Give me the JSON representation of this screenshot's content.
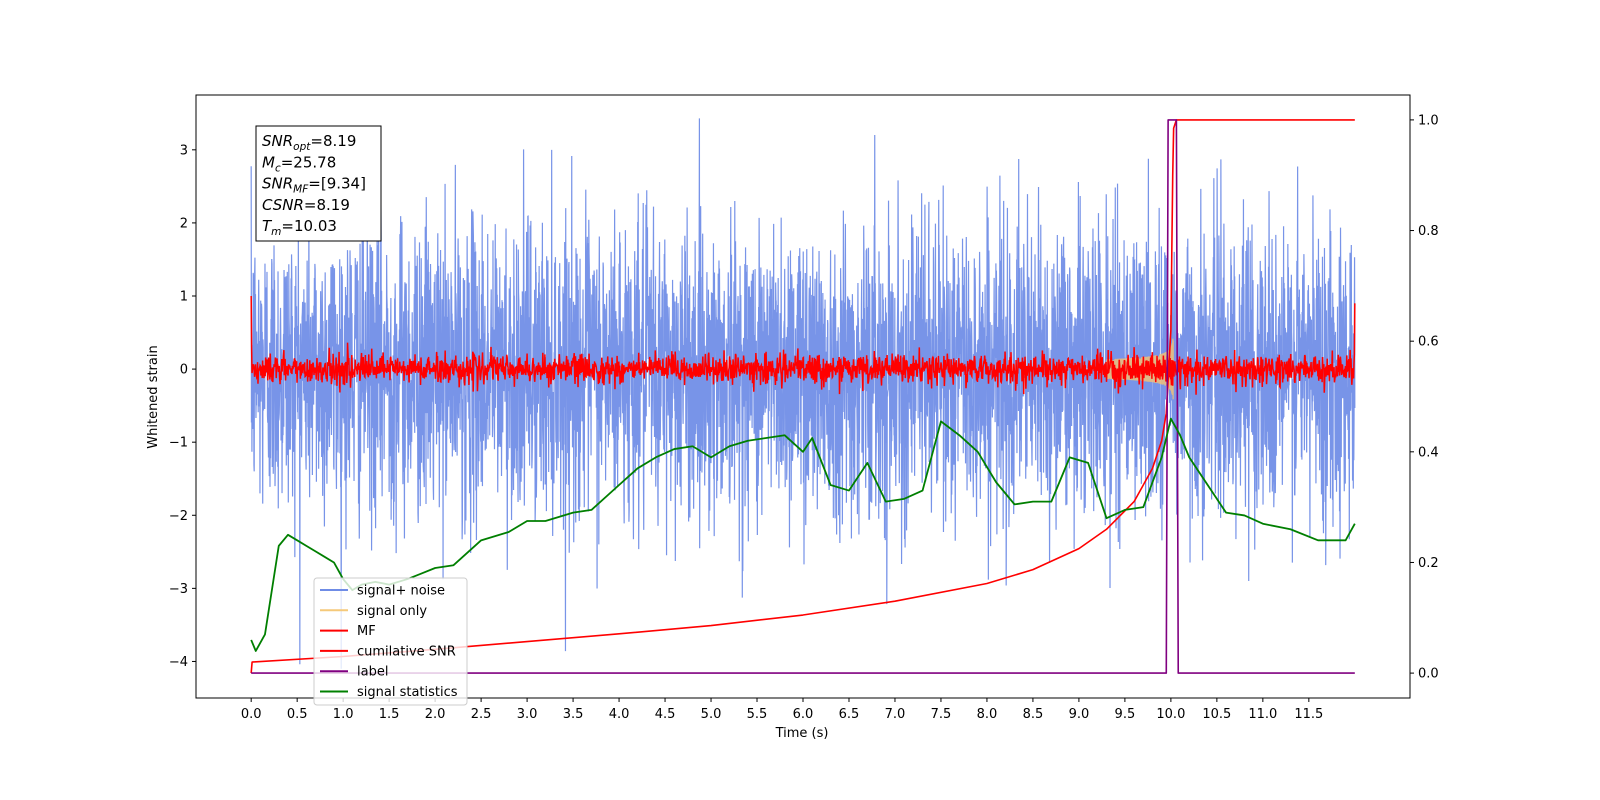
{
  "chart_data": {
    "type": "line",
    "xlabel": "Time (s)",
    "ylabel": "Whitened strain",
    "xlim": [
      -0.6,
      12.6
    ],
    "ylim": [
      -4.5,
      3.75
    ],
    "y2lim": [
      -0.045,
      1.045
    ],
    "xticks": [
      "0.0",
      "0.5",
      "1.0",
      "1.5",
      "2.0",
      "2.5",
      "3.0",
      "3.5",
      "4.0",
      "4.5",
      "5.0",
      "5.5",
      "6.0",
      "6.5",
      "7.0",
      "7.5",
      "8.0",
      "8.5",
      "9.0",
      "9.5",
      "10.0",
      "10.5",
      "11.0",
      "11.5"
    ],
    "yticks": [
      "3",
      "2",
      "1",
      "0",
      "−1",
      "−2",
      "−3",
      "−4"
    ],
    "y2ticks": [
      "0.0",
      "0.2",
      "0.4",
      "0.6",
      "0.8",
      "1.0"
    ],
    "annotation": [
      {
        "sym": "SNR",
        "sub": "opt",
        "rest": "=8.19"
      },
      {
        "sym": "M",
        "sub": "c",
        "rest": "=25.78"
      },
      {
        "sym": "SNR",
        "sub": "MF",
        "rest": "=[9.34]"
      },
      {
        "sym": "CSNR",
        "sub": "",
        "rest": "=8.19"
      },
      {
        "sym": "T",
        "sub": "m",
        "rest": "=10.03"
      }
    ],
    "legend": {
      "placement": "lower left",
      "entries": [
        {
          "label": "signal+ noise",
          "color": "#6f8ce6"
        },
        {
          "label": "signal only",
          "color": "#f5c97a"
        },
        {
          "label": "MF",
          "color": "#ff0000"
        },
        {
          "label": "cumilative SNR",
          "color": "#ff0000"
        },
        {
          "label": "label",
          "color": "#800080"
        },
        {
          "label": "signal statistics",
          "color": "#008000"
        }
      ]
    },
    "series": [
      {
        "name": "signal+ noise",
        "axis": "left",
        "color": "#7894e8",
        "kind": "noise",
        "t_range": [
          0.0,
          12.0
        ],
        "sigma": 1.0,
        "min": -4.1,
        "max": 3.6
      },
      {
        "name": "signal only",
        "axis": "left",
        "color": "#f0c078",
        "kind": "chirp",
        "t_range": [
          9.3,
          10.1
        ],
        "peak_amplitude": 0.5,
        "merger_time": 10.03
      },
      {
        "name": "MF",
        "axis": "left",
        "color": "#ff0000",
        "kind": "noise",
        "t_range": [
          0.0,
          12.0
        ],
        "sigma": 0.1,
        "edge_values": [
          1.0,
          0.9
        ]
      },
      {
        "name": "cumilative SNR",
        "axis": "right",
        "color": "#ff0000",
        "kind": "points",
        "points": [
          [
            0.0,
            0.0
          ],
          [
            0.01,
            0.02
          ],
          [
            1,
            0.03
          ],
          [
            2,
            0.043
          ],
          [
            3,
            0.057
          ],
          [
            4,
            0.071
          ],
          [
            5,
            0.086
          ],
          [
            6,
            0.105
          ],
          [
            7,
            0.13
          ],
          [
            8,
            0.162
          ],
          [
            8.5,
            0.187
          ],
          [
            9,
            0.225
          ],
          [
            9.3,
            0.26
          ],
          [
            9.6,
            0.31
          ],
          [
            9.8,
            0.37
          ],
          [
            9.9,
            0.42
          ],
          [
            9.95,
            0.47
          ],
          [
            10.0,
            0.62
          ],
          [
            10.02,
            0.9
          ],
          [
            10.03,
            0.985
          ],
          [
            10.06,
            1.0
          ],
          [
            12.0,
            1.0
          ]
        ]
      },
      {
        "name": "label",
        "axis": "right",
        "color": "#800080",
        "kind": "points",
        "points": [
          [
            0.0,
            0.0
          ],
          [
            9.95,
            0.0
          ],
          [
            9.97,
            1.0
          ],
          [
            10.06,
            1.0
          ],
          [
            10.08,
            0.0
          ],
          [
            12.0,
            0.0
          ]
        ]
      },
      {
        "name": "signal statistics",
        "axis": "right",
        "color": "#007f00",
        "kind": "points",
        "points": [
          [
            0.0,
            0.06
          ],
          [
            0.05,
            0.04
          ],
          [
            0.15,
            0.07
          ],
          [
            0.3,
            0.23
          ],
          [
            0.4,
            0.25
          ],
          [
            0.5,
            0.24
          ],
          [
            0.6,
            0.23
          ],
          [
            0.7,
            0.22
          ],
          [
            0.8,
            0.21
          ],
          [
            0.9,
            0.2
          ],
          [
            1.0,
            0.17
          ],
          [
            1.1,
            0.15
          ],
          [
            1.2,
            0.16
          ],
          [
            1.35,
            0.165
          ],
          [
            1.5,
            0.16
          ],
          [
            1.7,
            0.17
          ],
          [
            1.85,
            0.18
          ],
          [
            2.0,
            0.19
          ],
          [
            2.2,
            0.195
          ],
          [
            2.5,
            0.24
          ],
          [
            2.8,
            0.255
          ],
          [
            3.0,
            0.275
          ],
          [
            3.2,
            0.275
          ],
          [
            3.5,
            0.29
          ],
          [
            3.7,
            0.295
          ],
          [
            4.0,
            0.34
          ],
          [
            4.2,
            0.37
          ],
          [
            4.4,
            0.39
          ],
          [
            4.6,
            0.405
          ],
          [
            4.8,
            0.41
          ],
          [
            5.0,
            0.39
          ],
          [
            5.2,
            0.41
          ],
          [
            5.4,
            0.42
          ],
          [
            5.6,
            0.425
          ],
          [
            5.8,
            0.43
          ],
          [
            6.0,
            0.4
          ],
          [
            6.1,
            0.425
          ],
          [
            6.3,
            0.34
          ],
          [
            6.5,
            0.33
          ],
          [
            6.7,
            0.38
          ],
          [
            6.9,
            0.31
          ],
          [
            7.1,
            0.315
          ],
          [
            7.3,
            0.33
          ],
          [
            7.5,
            0.455
          ],
          [
            7.7,
            0.43
          ],
          [
            7.9,
            0.4
          ],
          [
            8.1,
            0.345
          ],
          [
            8.3,
            0.305
          ],
          [
            8.5,
            0.31
          ],
          [
            8.7,
            0.31
          ],
          [
            8.9,
            0.39
          ],
          [
            9.1,
            0.38
          ],
          [
            9.3,
            0.28
          ],
          [
            9.5,
            0.295
          ],
          [
            9.7,
            0.3
          ],
          [
            9.9,
            0.39
          ],
          [
            10.0,
            0.46
          ],
          [
            10.1,
            0.43
          ],
          [
            10.2,
            0.39
          ],
          [
            10.4,
            0.34
          ],
          [
            10.6,
            0.29
          ],
          [
            10.8,
            0.285
          ],
          [
            11.0,
            0.27
          ],
          [
            11.3,
            0.26
          ],
          [
            11.6,
            0.24
          ],
          [
            11.9,
            0.24
          ],
          [
            12.0,
            0.27
          ]
        ]
      }
    ]
  }
}
